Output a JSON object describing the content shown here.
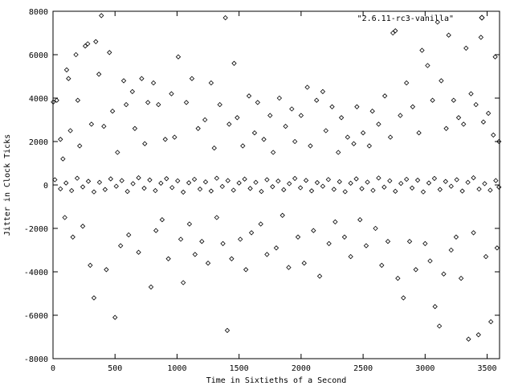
{
  "chart_data": {
    "type": "scatter",
    "title": "",
    "xlabel": "Time in Sixtieths of a Second",
    "ylabel": "Jitter in Clock Ticks",
    "xlim": [
      0,
      3600
    ],
    "ylim": [
      -8000,
      8000
    ],
    "x_ticks": [
      0,
      500,
      1000,
      1500,
      2000,
      2500,
      3000,
      3500
    ],
    "y_ticks": [
      -8000,
      -6000,
      -4000,
      -2000,
      0,
      2000,
      4000,
      6000,
      8000
    ],
    "grid": false,
    "legend_position": "top-right",
    "marker": "diamond",
    "series": [
      {
        "name": "\"2.6.11-rc3-vanilla\"",
        "color": "#000000",
        "points": [
          [
            2,
            3820
          ],
          [
            30,
            3900
          ],
          [
            60,
            2100
          ],
          [
            80,
            1200
          ],
          [
            95,
            -1500
          ],
          [
            110,
            5300
          ],
          [
            125,
            4900
          ],
          [
            140,
            2500
          ],
          [
            160,
            -2400
          ],
          [
            185,
            6000
          ],
          [
            200,
            3900
          ],
          [
            215,
            1800
          ],
          [
            240,
            -1900
          ],
          [
            260,
            6400
          ],
          [
            280,
            6500
          ],
          [
            300,
            -3700
          ],
          [
            310,
            2800
          ],
          [
            330,
            -5200
          ],
          [
            345,
            6600
          ],
          [
            370,
            5100
          ],
          [
            390,
            7800
          ],
          [
            410,
            2700
          ],
          [
            430,
            -3900
          ],
          [
            455,
            6100
          ],
          [
            480,
            3400
          ],
          [
            500,
            -6100
          ],
          [
            520,
            1500
          ],
          [
            545,
            -2800
          ],
          [
            570,
            4800
          ],
          [
            590,
            3700
          ],
          [
            610,
            -2300
          ],
          [
            640,
            4300
          ],
          [
            660,
            2600
          ],
          [
            690,
            -3100
          ],
          [
            715,
            4900
          ],
          [
            740,
            1900
          ],
          [
            765,
            3800
          ],
          [
            790,
            -4700
          ],
          [
            810,
            4700
          ],
          [
            830,
            -2100
          ],
          [
            850,
            3700
          ],
          [
            880,
            -1600
          ],
          [
            905,
            2100
          ],
          [
            930,
            -3400
          ],
          [
            955,
            4200
          ],
          [
            980,
            2200
          ],
          [
            1010,
            5900
          ],
          [
            1030,
            -2500
          ],
          [
            1050,
            -4500
          ],
          [
            1075,
            3800
          ],
          [
            1100,
            -1800
          ],
          [
            1120,
            4900
          ],
          [
            1145,
            -3200
          ],
          [
            1170,
            2600
          ],
          [
            1200,
            -2600
          ],
          [
            1225,
            3000
          ],
          [
            1250,
            -3600
          ],
          [
            1275,
            4700
          ],
          [
            1300,
            1700
          ],
          [
            1320,
            -1500
          ],
          [
            1345,
            3700
          ],
          [
            1370,
            -2700
          ],
          [
            1390,
            7700
          ],
          [
            1405,
            -6700
          ],
          [
            1420,
            2800
          ],
          [
            1440,
            -3400
          ],
          [
            1460,
            5600
          ],
          [
            1485,
            3100
          ],
          [
            1510,
            -2500
          ],
          [
            1530,
            1800
          ],
          [
            1555,
            -3900
          ],
          [
            1580,
            4100
          ],
          [
            1600,
            -2200
          ],
          [
            1625,
            2400
          ],
          [
            1650,
            3800
          ],
          [
            1675,
            -1800
          ],
          [
            1700,
            2100
          ],
          [
            1725,
            -3200
          ],
          [
            1750,
            3200
          ],
          [
            1775,
            1500
          ],
          [
            1800,
            -2900
          ],
          [
            1825,
            4000
          ],
          [
            1850,
            -1400
          ],
          [
            1875,
            2700
          ],
          [
            1900,
            -3800
          ],
          [
            1925,
            3500
          ],
          [
            1950,
            2000
          ],
          [
            1975,
            -2400
          ],
          [
            2000,
            3200
          ],
          [
            2025,
            -3600
          ],
          [
            2050,
            4500
          ],
          [
            2075,
            1800
          ],
          [
            2100,
            -2100
          ],
          [
            2125,
            3900
          ],
          [
            2150,
            -4200
          ],
          [
            2175,
            4300
          ],
          [
            2200,
            2500
          ],
          [
            2225,
            -2700
          ],
          [
            2250,
            3600
          ],
          [
            2275,
            -1700
          ],
          [
            2300,
            1500
          ],
          [
            2325,
            3100
          ],
          [
            2350,
            -2400
          ],
          [
            2375,
            2200
          ],
          [
            2400,
            -3300
          ],
          [
            2425,
            1900
          ],
          [
            2450,
            3600
          ],
          [
            2475,
            -1600
          ],
          [
            2500,
            2400
          ],
          [
            2525,
            -2800
          ],
          [
            2550,
            1800
          ],
          [
            2575,
            3400
          ],
          [
            2600,
            -2000
          ],
          [
            2625,
            2800
          ],
          [
            2650,
            -3700
          ],
          [
            2675,
            4100
          ],
          [
            2700,
            -2600
          ],
          [
            2720,
            2200
          ],
          [
            2740,
            7000
          ],
          [
            2760,
            7100
          ],
          [
            2780,
            -4300
          ],
          [
            2800,
            3200
          ],
          [
            2825,
            -5200
          ],
          [
            2850,
            4700
          ],
          [
            2875,
            -2600
          ],
          [
            2900,
            3600
          ],
          [
            2925,
            -3900
          ],
          [
            2950,
            2400
          ],
          [
            2975,
            6200
          ],
          [
            3000,
            -2700
          ],
          [
            3020,
            5500
          ],
          [
            3040,
            -3500
          ],
          [
            3060,
            3900
          ],
          [
            3080,
            -5600
          ],
          [
            3100,
            7500
          ],
          [
            3115,
            -6500
          ],
          [
            3130,
            4800
          ],
          [
            3150,
            -4100
          ],
          [
            3170,
            2600
          ],
          [
            3190,
            6900
          ],
          [
            3210,
            -3000
          ],
          [
            3230,
            3900
          ],
          [
            3250,
            -2400
          ],
          [
            3270,
            3100
          ],
          [
            3290,
            -4300
          ],
          [
            3310,
            2800
          ],
          [
            3330,
            6300
          ],
          [
            3350,
            -7100
          ],
          [
            3370,
            4200
          ],
          [
            3390,
            -2200
          ],
          [
            3410,
            3700
          ],
          [
            3430,
            -6900
          ],
          [
            3450,
            6800
          ],
          [
            3470,
            2900
          ],
          [
            3490,
            -3300
          ],
          [
            3510,
            3300
          ],
          [
            3530,
            -6300
          ],
          [
            3550,
            2300
          ],
          [
            3565,
            5900
          ],
          [
            3580,
            -2900
          ],
          [
            3595,
            2000
          ]
        ],
        "band_points": [
          [
            15,
            240
          ],
          [
            60,
            -180
          ],
          [
            105,
            90
          ],
          [
            150,
            -260
          ],
          [
            195,
            310
          ],
          [
            240,
            -90
          ],
          [
            285,
            170
          ],
          [
            330,
            -320
          ],
          [
            375,
            120
          ],
          [
            420,
            -210
          ],
          [
            465,
            280
          ],
          [
            510,
            -60
          ],
          [
            555,
            200
          ],
          [
            600,
            -300
          ],
          [
            645,
            60
          ],
          [
            690,
            330
          ],
          [
            735,
            -150
          ],
          [
            780,
            230
          ],
          [
            825,
            -260
          ],
          [
            870,
            80
          ],
          [
            915,
            290
          ],
          [
            960,
            -120
          ],
          [
            1005,
            190
          ],
          [
            1050,
            -330
          ],
          [
            1095,
            100
          ],
          [
            1140,
            260
          ],
          [
            1185,
            -190
          ],
          [
            1230,
            140
          ],
          [
            1275,
            -280
          ],
          [
            1320,
            310
          ],
          [
            1365,
            -70
          ],
          [
            1410,
            200
          ],
          [
            1455,
            -240
          ],
          [
            1500,
            90
          ],
          [
            1545,
            270
          ],
          [
            1590,
            -160
          ],
          [
            1635,
            120
          ],
          [
            1680,
            -300
          ],
          [
            1725,
            240
          ],
          [
            1770,
            -80
          ],
          [
            1815,
            180
          ],
          [
            1860,
            -220
          ],
          [
            1905,
            60
          ],
          [
            1950,
            300
          ],
          [
            1995,
            -130
          ],
          [
            2040,
            210
          ],
          [
            2085,
            -270
          ],
          [
            2130,
            110
          ],
          [
            2175,
            -60
          ],
          [
            2220,
            250
          ],
          [
            2265,
            -200
          ],
          [
            2310,
            150
          ],
          [
            2355,
            -310
          ],
          [
            2400,
            80
          ],
          [
            2445,
            280
          ],
          [
            2490,
            -170
          ],
          [
            2535,
            130
          ],
          [
            2580,
            -250
          ],
          [
            2625,
            320
          ],
          [
            2670,
            -100
          ],
          [
            2715,
            190
          ],
          [
            2760,
            -290
          ],
          [
            2805,
            70
          ],
          [
            2850,
            260
          ],
          [
            2895,
            -140
          ],
          [
            2940,
            220
          ],
          [
            2985,
            -320
          ],
          [
            3030,
            90
          ],
          [
            3075,
            300
          ],
          [
            3120,
            -210
          ],
          [
            3165,
            160
          ],
          [
            3210,
            -60
          ],
          [
            3255,
            240
          ],
          [
            3300,
            -280
          ],
          [
            3345,
            120
          ],
          [
            3390,
            330
          ],
          [
            3435,
            -190
          ],
          [
            3480,
            60
          ],
          [
            3525,
            -240
          ],
          [
            3570,
            200
          ],
          [
            3595,
            -100
          ]
        ]
      }
    ]
  }
}
